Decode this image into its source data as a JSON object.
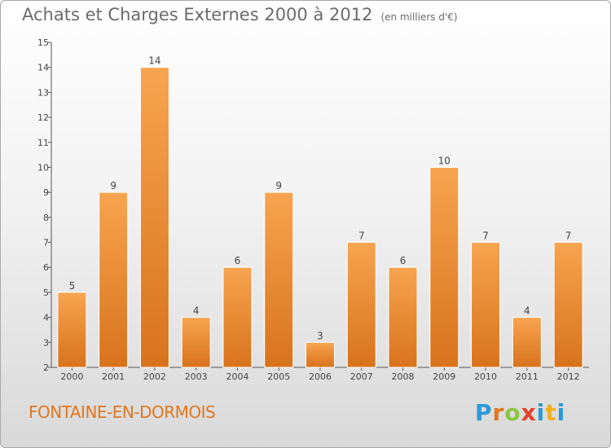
{
  "header": {
    "title": "Achats et Charges Externes 2000 à 2012",
    "subtitle": "(en milliers d'€)"
  },
  "footer": {
    "place": "FONTAINE-EN-DORMOIS",
    "brand": "Proxiti"
  },
  "colors": {
    "bar_light": "#f7a450",
    "bar_dark": "#d8731c",
    "title": "#6b6b6b",
    "place": "#e0771f"
  },
  "chart_data": {
    "type": "bar",
    "title": "Achats et Charges Externes 2000 à 2012",
    "subtitle": "(en milliers d'€)",
    "categories": [
      "2000",
      "2001",
      "2002",
      "2003",
      "2004",
      "2005",
      "2006",
      "2007",
      "2008",
      "2009",
      "2010",
      "2011",
      "2012"
    ],
    "values": [
      5,
      9,
      14,
      4,
      6,
      9,
      3,
      7,
      6,
      10,
      7,
      4,
      7
    ],
    "data_labels": [
      "5",
      "9",
      "14",
      "4",
      "6",
      "9",
      "3",
      "7",
      "6",
      "10",
      "7",
      "4",
      "7"
    ],
    "ylim": [
      2,
      15
    ],
    "yticks": [
      2,
      3,
      4,
      5,
      6,
      7,
      8,
      9,
      10,
      11,
      12,
      13,
      14,
      15
    ],
    "xlabel": "",
    "ylabel": "",
    "grid": false,
    "legend": "none"
  }
}
